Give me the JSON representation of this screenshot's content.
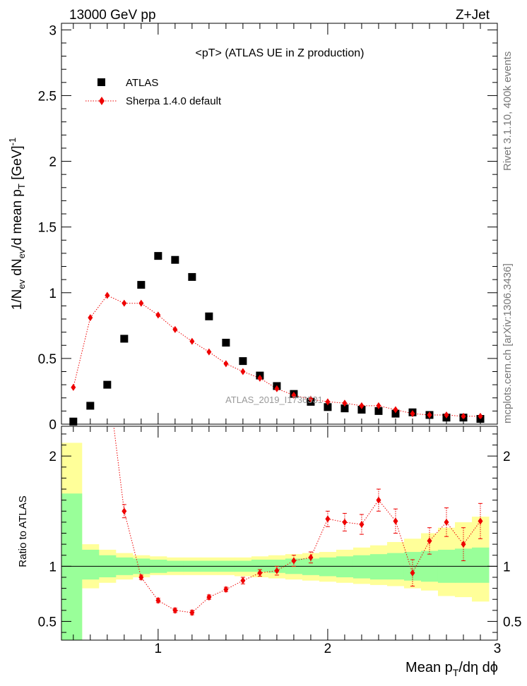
{
  "header": {
    "left": "13000 GeV pp",
    "right": "Z+Jet"
  },
  "side_labels": {
    "rivet": "Rivet 3.1.10,  400k events",
    "mcplots": "mcplots.cern.ch [arXiv:1306.3436]"
  },
  "chart_data": [
    {
      "type": "scatter",
      "title": "<pT>  (ATLAS UE in Z production)",
      "watermark": "ATLAS_2019_I1736531",
      "xlabel": "Mean p_T/dη dϕ",
      "ylabel": "1/N_ev dN_ev/d mean p_T [GeV]^-1",
      "xlim": [
        0.43,
        3.0
      ],
      "ylim": [
        0,
        3.05
      ],
      "x_ticks": [
        1,
        2,
        3
      ],
      "y_ticks": [
        0,
        0.5,
        1,
        1.5,
        2,
        2.5,
        3
      ],
      "y_tick_labels": [
        "0",
        "0.5",
        "1",
        "1.5",
        "2",
        "2.5",
        "3"
      ],
      "legend": {
        "position": "top-left",
        "entries": [
          "ATLAS",
          "Sherpa 1.4.0 default"
        ]
      },
      "series": [
        {
          "name": "ATLAS",
          "marker": "square",
          "color": "#000000",
          "x": [
            0.5,
            0.6,
            0.7,
            0.8,
            0.9,
            1.0,
            1.1,
            1.2,
            1.3,
            1.4,
            1.5,
            1.6,
            1.7,
            1.8,
            1.9,
            2.0,
            2.1,
            2.2,
            2.3,
            2.4,
            2.5,
            2.6,
            2.7,
            2.8,
            2.9
          ],
          "y": [
            0.02,
            0.14,
            0.3,
            0.65,
            1.06,
            1.28,
            1.25,
            1.12,
            0.82,
            0.62,
            0.48,
            0.37,
            0.29,
            0.23,
            0.17,
            0.13,
            0.12,
            0.11,
            0.1,
            0.08,
            0.09,
            0.07,
            0.05,
            0.05,
            0.04
          ]
        },
        {
          "name": "Sherpa 1.4.0 default",
          "marker": "diamond",
          "color": "#ee0000",
          "x": [
            0.5,
            0.6,
            0.7,
            0.8,
            0.9,
            1.0,
            1.1,
            1.2,
            1.3,
            1.4,
            1.5,
            1.6,
            1.7,
            1.8,
            1.9,
            2.0,
            2.1,
            2.2,
            2.3,
            2.4,
            2.5,
            2.6,
            2.7,
            2.8,
            2.9
          ],
          "y": [
            0.28,
            0.81,
            0.98,
            0.92,
            0.92,
            0.83,
            0.72,
            0.63,
            0.55,
            0.46,
            0.4,
            0.35,
            0.27,
            0.22,
            0.19,
            0.17,
            0.16,
            0.14,
            0.14,
            0.11,
            0.08,
            0.07,
            0.07,
            0.06,
            0.06
          ]
        }
      ]
    },
    {
      "type": "line",
      "ylabel": "Ratio to ATLAS",
      "xlabel": "Mean p_T/dη dϕ",
      "xlim": [
        0.43,
        3.0
      ],
      "ylim": [
        0.33,
        2.27
      ],
      "x_ticks": [
        1,
        2,
        3
      ],
      "y_ticks": [
        0.5,
        1,
        2
      ],
      "reference_line": 1,
      "band_edges": [
        0.43,
        0.55,
        0.65,
        0.75,
        0.85,
        0.95,
        1.05,
        1.15,
        1.25,
        1.35,
        1.45,
        1.55,
        1.65,
        1.75,
        1.85,
        1.95,
        2.05,
        2.15,
        2.25,
        2.35,
        2.45,
        2.55,
        2.65,
        2.75,
        2.85,
        2.95
      ],
      "bands": [
        {
          "name": "stat",
          "color": "#99ff99",
          "low": [
            0.12,
            0.88,
            0.9,
            0.92,
            0.93,
            0.94,
            0.95,
            0.95,
            0.95,
            0.95,
            0.95,
            0.95,
            0.94,
            0.93,
            0.92,
            0.91,
            0.9,
            0.89,
            0.88,
            0.88,
            0.87,
            0.86,
            0.85,
            0.85,
            0.85
          ],
          "high": [
            1.66,
            1.15,
            1.1,
            1.08,
            1.07,
            1.06,
            1.05,
            1.05,
            1.05,
            1.05,
            1.05,
            1.06,
            1.06,
            1.07,
            1.07,
            1.08,
            1.09,
            1.1,
            1.11,
            1.12,
            1.13,
            1.14,
            1.15,
            1.16,
            1.17
          ]
        },
        {
          "name": "syst",
          "color": "#ffff99",
          "low": [
            0.12,
            0.8,
            0.85,
            0.88,
            0.9,
            0.92,
            0.92,
            0.92,
            0.92,
            0.92,
            0.91,
            0.9,
            0.89,
            0.88,
            0.87,
            0.86,
            0.85,
            0.84,
            0.83,
            0.82,
            0.8,
            0.78,
            0.73,
            0.72,
            0.68
          ],
          "high": [
            2.12,
            1.2,
            1.15,
            1.12,
            1.1,
            1.09,
            1.08,
            1.08,
            1.08,
            1.08,
            1.08,
            1.09,
            1.1,
            1.11,
            1.12,
            1.13,
            1.15,
            1.17,
            1.19,
            1.22,
            1.25,
            1.3,
            1.35,
            1.4,
            1.45
          ]
        }
      ],
      "series": [
        {
          "name": "Sherpa 1.4.0 default",
          "color": "#ee0000",
          "x": [
            0.8,
            0.9,
            1.0,
            1.1,
            1.2,
            1.3,
            1.4,
            1.5,
            1.6,
            1.7,
            1.8,
            1.9,
            2.0,
            2.1,
            2.2,
            2.3,
            2.4,
            2.5,
            2.6,
            2.7,
            2.8,
            2.9
          ],
          "y": [
            1.5,
            0.9,
            0.69,
            0.6,
            0.58,
            0.72,
            0.79,
            0.87,
            0.94,
            0.96,
            1.05,
            1.08,
            1.43,
            1.4,
            1.38,
            1.6,
            1.41,
            0.94,
            1.23,
            1.4,
            1.2,
            1.41
          ],
          "err": [
            0.06,
            0.02,
            0.02,
            0.02,
            0.02,
            0.02,
            0.02,
            0.03,
            0.03,
            0.04,
            0.05,
            0.05,
            0.07,
            0.08,
            0.09,
            0.1,
            0.11,
            0.12,
            0.12,
            0.13,
            0.15,
            0.16
          ],
          "entry_from": {
            "x": 0.72,
            "y": 2.5
          }
        }
      ]
    }
  ]
}
